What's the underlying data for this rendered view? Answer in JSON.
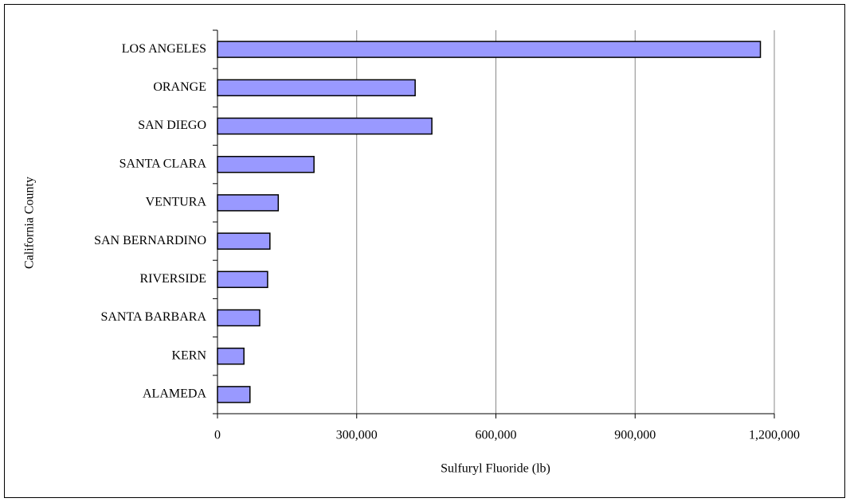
{
  "chart_data": {
    "type": "barh",
    "x_label": "Sulfuryl Fluoride (lb)",
    "y_label": "California County",
    "categories": [
      "LOS ANGELES",
      "ORANGE",
      "SAN DIEGO",
      "SANTA CLARA",
      "VENTURA",
      "SAN BERNARDINO",
      "RIVERSIDE",
      "SANTA BARBARA",
      "KERN",
      "ALAMEDA"
    ],
    "values": [
      1170000,
      426000,
      462000,
      208000,
      131000,
      113000,
      108000,
      91000,
      57000,
      70000
    ],
    "color": "#9999ff",
    "xlim": [
      0,
      1200000
    ],
    "xticks": [
      0,
      {
        "value": 300000,
        "label": "300,000"
      },
      {
        "value": 600000,
        "label": "600,000"
      },
      {
        "value": 900000,
        "label": "900,000"
      },
      {
        "value": 1200000,
        "label": "1,200,000"
      }
    ],
    "grid": true
  }
}
